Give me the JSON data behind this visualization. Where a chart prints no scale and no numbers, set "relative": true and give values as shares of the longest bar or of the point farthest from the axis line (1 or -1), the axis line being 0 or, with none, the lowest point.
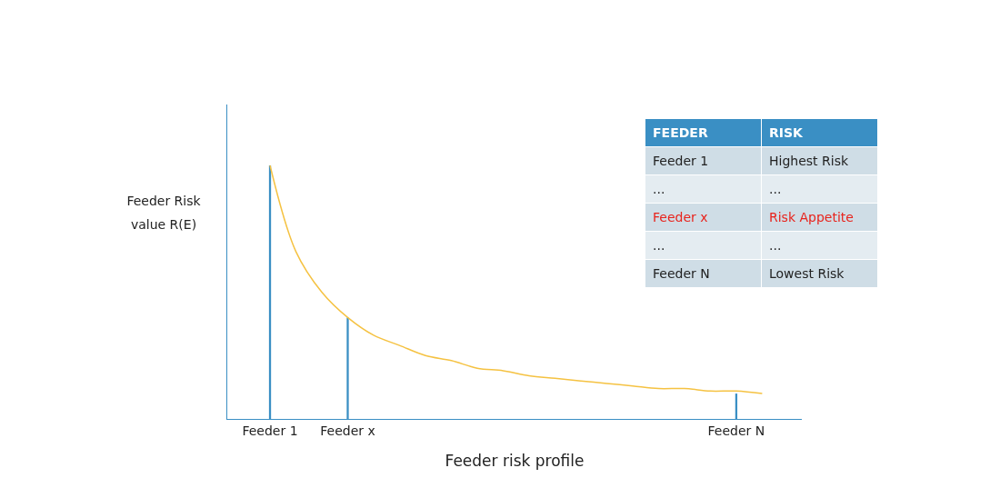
{
  "chart_data": [
    {
      "type": "line",
      "xlabel": "Feeder risk profile",
      "ylabel": "Feeder Risk value R(E)",
      "relative": true,
      "categories": [
        "Feeder 1",
        null,
        null,
        "Feeder x",
        null,
        null,
        null,
        null,
        null,
        null,
        null,
        null,
        null,
        null,
        null,
        null,
        null,
        null,
        "Feeder N",
        null
      ],
      "series": [
        {
          "type": "line",
          "color": "#f5c242",
          "values": [
            1.0,
            0.66,
            0.5,
            0.4,
            0.33,
            0.29,
            0.25,
            0.23,
            0.2,
            0.19,
            0.17,
            0.16,
            0.15,
            0.14,
            0.13,
            0.12,
            0.12,
            0.11,
            0.11,
            0.1
          ]
        },
        {
          "type": "bar",
          "color": "#3a8fc4",
          "values": [
            1.0,
            null,
            null,
            0.4,
            null,
            null,
            null,
            null,
            null,
            null,
            null,
            null,
            null,
            null,
            null,
            null,
            null,
            null,
            0.1,
            null
          ]
        }
      ]
    },
    {
      "type": "other",
      "categories": [
        "FEEDER",
        "RISK"
      ],
      "cell_labels": [
        [
          "Feeder 1",
          "Highest Risk"
        ],
        [
          "...",
          "..."
        ],
        [
          "Feeder x",
          "Risk Appetite"
        ],
        [
          "...",
          "..."
        ],
        [
          "Feeder N",
          "Lowest Risk"
        ]
      ],
      "colors": [
        "#ffffff",
        "#ffffff",
        "#222222",
        "#222222",
        "#222222",
        "#222222",
        "#e8231c",
        "#e8231c",
        "#222222",
        "#222222",
        "#222222",
        "#222222"
      ]
    }
  ]
}
